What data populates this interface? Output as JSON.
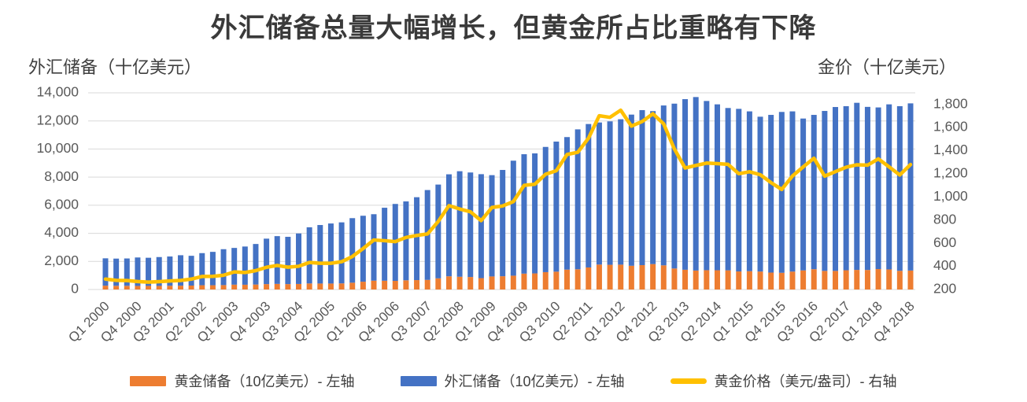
{
  "chart_data": {
    "type": "combo-stacked-bar-line",
    "title": "外汇储备总量大幅增长，但黄金所占比重略有下降",
    "grid": "horizontal",
    "legend_position": "bottom",
    "x": {
      "unit": "quarter",
      "start": "Q1 2000",
      "end": "Q4 2018",
      "count": 76,
      "tick_every": 3,
      "tick_labels": [
        "Q1 2000",
        "Q4 2000",
        "Q3 2001",
        "Q2 2002",
        "Q1 2003",
        "Q4 2003",
        "Q3 2004",
        "Q2 2005",
        "Q1 2006",
        "Q4 2006",
        "Q3 2007",
        "Q2 2008",
        "Q1 2009",
        "Q4 2009",
        "Q3 2010",
        "Q2 2011",
        "Q1 2012",
        "Q4 2012",
        "Q3 2013",
        "Q2 2014",
        "Q1 2015",
        "Q4 2015",
        "Q3 2016",
        "Q2 2017",
        "Q1 2018",
        "Q4 2018"
      ]
    },
    "left_axis": {
      "title": "外汇储备（十亿美元）",
      "min": 0,
      "max": 14000,
      "tick_values": [
        0,
        2000,
        4000,
        6000,
        8000,
        10000,
        12000,
        14000
      ],
      "tick_labels": [
        "0",
        "2,000",
        "4,000",
        "6,000",
        "8,000",
        "10,000",
        "12,000",
        "14,000"
      ]
    },
    "right_axis": {
      "title": "金价（十亿美元）",
      "min": 200,
      "axis_top": 1900,
      "tick_values": [
        200,
        400,
        600,
        800,
        1000,
        1200,
        1400,
        1600,
        1800
      ],
      "tick_labels": [
        "200",
        "400",
        "600",
        "800",
        "1,000",
        "1,200",
        "1,400",
        "1,600",
        "1,800"
      ]
    },
    "series": [
      {
        "name": "黄金储备（10亿美元）- 左轴",
        "type": "bar",
        "stack": "reserves",
        "axis": "left",
        "color": "#ED7D31",
        "values": [
          275,
          265,
          265,
          255,
          255,
          255,
          265,
          270,
          280,
          305,
          305,
          315,
          345,
          340,
          355,
          385,
          400,
          385,
          395,
          430,
          425,
          425,
          435,
          485,
          555,
          630,
          625,
          615,
          655,
          670,
          685,
          795,
          940,
          910,
          890,
          810,
          930,
          945,
          985,
          1130,
          1145,
          1235,
          1270,
          1415,
          1440,
          1570,
          1775,
          1760,
          1770,
          1690,
          1735,
          1810,
          1720,
          1495,
          1405,
          1350,
          1375,
          1370,
          1365,
          1285,
          1305,
          1280,
          1205,
          1190,
          1275,
          1360,
          1445,
          1325,
          1325,
          1370,
          1395,
          1390,
          1455,
          1430,
          1330,
          1350
        ]
      },
      {
        "name": "外汇储备（10亿美元）- 左轴",
        "type": "bar",
        "stack": "reserves",
        "axis": "left",
        "color": "#4472C4",
        "values": [
          1945,
          1935,
          1945,
          2025,
          2005,
          2055,
          2085,
          2170,
          2120,
          2285,
          2375,
          2555,
          2615,
          2720,
          2885,
          3235,
          3400,
          3365,
          3595,
          4000,
          4165,
          4275,
          4345,
          4595,
          4695,
          4730,
          5195,
          5475,
          5615,
          5900,
          6395,
          6675,
          7260,
          7510,
          7440,
          7400,
          7210,
          7565,
          8185,
          8500,
          8545,
          8915,
          9260,
          9435,
          9960,
          10210,
          10115,
          10210,
          10350,
          10760,
          11035,
          10890,
          11380,
          11735,
          12145,
          12350,
          12045,
          11810,
          11555,
          11575,
          11375,
          11020,
          11225,
          11450,
          11405,
          10810,
          10985,
          11385,
          11665,
          11680,
          11895,
          11610,
          11505,
          11750,
          11720,
          11900
        ]
      },
      {
        "name": "黄金价格（美元/盎司）- 右轴",
        "type": "line",
        "axis": "right",
        "color": "#FFC000",
        "values": [
          290,
          279,
          277,
          269,
          264,
          268,
          274,
          278,
          290,
          313,
          314,
          323,
          352,
          347,
          363,
          392,
          408,
          393,
          401,
          434,
          427,
          427,
          440,
          485,
          554,
          628,
          622,
          614,
          650,
          667,
          680,
          788,
          925,
          896,
          872,
          795,
          909,
          922,
          960,
          1100,
          1110,
          1196,
          1227,
          1367,
          1386,
          1508,
          1702,
          1688,
          1750,
          1612,
          1652,
          1719,
          1632,
          1415,
          1250,
          1272,
          1293,
          1288,
          1282,
          1201,
          1218,
          1192,
          1124,
          1065,
          1181,
          1260,
          1335,
          1180,
          1219,
          1257,
          1278,
          1275,
          1329,
          1260,
          1190,
          1280
        ]
      }
    ]
  },
  "legend": [
    {
      "label": "黄金储备（10亿美元）- 左轴",
      "color": "#ED7D31",
      "marker": "bar"
    },
    {
      "label": "外汇储备（10亿美元）- 左轴",
      "color": "#4472C4",
      "marker": "bar"
    },
    {
      "label": "黄金价格（美元/盎司）- 右轴",
      "color": "#FFC000",
      "marker": "line"
    }
  ],
  "colors": {
    "gold_reserves_bar": "#ED7D31",
    "fx_reserves_bar": "#4472C4",
    "gold_price_line": "#FFC000",
    "gridline": "#D9D9D9",
    "tick_text": "#595959",
    "title_text": "#3A3A3A"
  }
}
